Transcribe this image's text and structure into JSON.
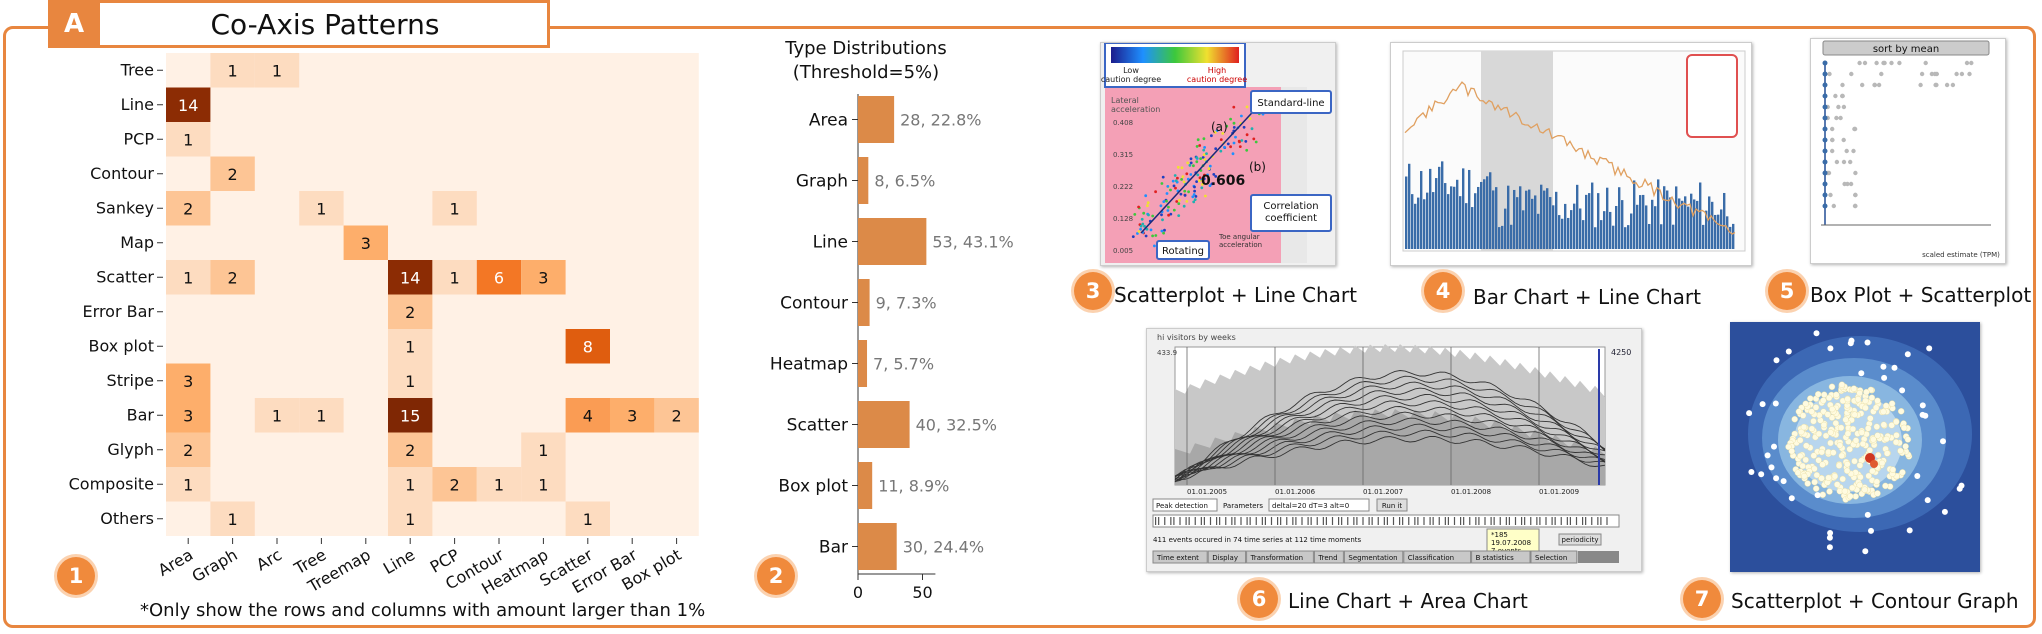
{
  "panel": {
    "letter": "A",
    "title": "Co-Axis Patterns"
  },
  "badges": [
    "1",
    "2",
    "3",
    "4",
    "5",
    "6",
    "7"
  ],
  "note": "*Only show the rows and columns with amount larger than 1%",
  "colors": {
    "accent": "#e8863f",
    "heat_low": "#fff1e5",
    "heat_high": "#7f2704",
    "bar": "#dc8a48"
  },
  "chart_data": [
    {
      "type": "heatmap",
      "rows": [
        "Tree",
        "Line",
        "PCP",
        "Contour",
        "Sankey",
        "Map",
        "Scatter",
        "Error Bar",
        "Box plot",
        "Stripe",
        "Bar",
        "Glyph",
        "Composite",
        "Others"
      ],
      "columns": [
        "Area",
        "Graph",
        "Arc",
        "Tree",
        "Treemap",
        "Line",
        "PCP",
        "Contour",
        "Heatmap",
        "Scatter",
        "Error Bar",
        "Box plot"
      ],
      "cells": [
        {
          "row": "Tree",
          "col": "Graph",
          "value": 1
        },
        {
          "row": "Tree",
          "col": "Arc",
          "value": 1
        },
        {
          "row": "Line",
          "col": "Area",
          "value": 14
        },
        {
          "row": "PCP",
          "col": "Area",
          "value": 1
        },
        {
          "row": "Contour",
          "col": "Graph",
          "value": 2
        },
        {
          "row": "Sankey",
          "col": "Area",
          "value": 2
        },
        {
          "row": "Sankey",
          "col": "Tree",
          "value": 1
        },
        {
          "row": "Sankey",
          "col": "PCP",
          "value": 1
        },
        {
          "row": "Map",
          "col": "Treemap",
          "value": 3
        },
        {
          "row": "Scatter",
          "col": "Area",
          "value": 1
        },
        {
          "row": "Scatter",
          "col": "Graph",
          "value": 2
        },
        {
          "row": "Scatter",
          "col": "Line",
          "value": 14
        },
        {
          "row": "Scatter",
          "col": "PCP",
          "value": 1
        },
        {
          "row": "Scatter",
          "col": "Contour",
          "value": 6
        },
        {
          "row": "Scatter",
          "col": "Heatmap",
          "value": 3
        },
        {
          "row": "Error Bar",
          "col": "Line",
          "value": 2
        },
        {
          "row": "Box plot",
          "col": "Line",
          "value": 1
        },
        {
          "row": "Box plot",
          "col": "Scatter",
          "value": 8
        },
        {
          "row": "Stripe",
          "col": "Area",
          "value": 3
        },
        {
          "row": "Stripe",
          "col": "Line",
          "value": 1
        },
        {
          "row": "Bar",
          "col": "Area",
          "value": 3
        },
        {
          "row": "Bar",
          "col": "Arc",
          "value": 1
        },
        {
          "row": "Bar",
          "col": "Tree",
          "value": 1
        },
        {
          "row": "Bar",
          "col": "Line",
          "value": 15
        },
        {
          "row": "Bar",
          "col": "Scatter",
          "value": 4
        },
        {
          "row": "Bar",
          "col": "Error Bar",
          "value": 3
        },
        {
          "row": "Bar",
          "col": "Box plot",
          "value": 2
        },
        {
          "row": "Glyph",
          "col": "Area",
          "value": 2
        },
        {
          "row": "Glyph",
          "col": "Line",
          "value": 2
        },
        {
          "row": "Glyph",
          "col": "Heatmap",
          "value": 1
        },
        {
          "row": "Composite",
          "col": "Area",
          "value": 1
        },
        {
          "row": "Composite",
          "col": "Line",
          "value": 1
        },
        {
          "row": "Composite",
          "col": "PCP",
          "value": 2
        },
        {
          "row": "Composite",
          "col": "Contour",
          "value": 1
        },
        {
          "row": "Composite",
          "col": "Heatmap",
          "value": 1
        },
        {
          "row": "Others",
          "col": "Graph",
          "value": 1
        },
        {
          "row": "Others",
          "col": "Line",
          "value": 1
        },
        {
          "row": "Others",
          "col": "Scatter",
          "value": 1
        }
      ],
      "value_range": [
        0,
        15
      ]
    },
    {
      "type": "bar",
      "orientation": "horizontal",
      "title": "Type Distributions\n(Threshold=5%)",
      "categories": [
        "Area",
        "Graph",
        "Line",
        "Contour",
        "Heatmap",
        "Scatter",
        "Box plot",
        "Bar"
      ],
      "values": [
        28,
        8,
        53,
        9,
        7,
        40,
        11,
        30
      ],
      "labels": [
        "28, 22.8%",
        "8, 6.5%",
        "53, 43.1%",
        "9, 7.3%",
        "7, 5.7%",
        "40, 32.5%",
        "11, 8.9%",
        "30, 24.4%"
      ],
      "xlim": [
        0,
        60
      ],
      "xticks": [
        0,
        50
      ]
    }
  ],
  "examples": {
    "ex3": {
      "caption": "Scatterplot + Line Chart",
      "legend_low": "Low\ncaution degree",
      "legend_high": "High\ncaution degree",
      "y_label": "Lateral\nacceleration",
      "x_label": "Toe angular\nacceleration",
      "callout_standard": "Standard-line",
      "callout_corr": "Correlation\ncoefficient",
      "callout_rotating": "Rotating",
      "mark_a": "(a)",
      "mark_b": "(b)",
      "corr_value": "0.606",
      "y_ticks": [
        "0.408",
        "0.315",
        "0.222",
        "0.128",
        "0.005"
      ]
    },
    "ex4": {
      "caption": "Bar Chart + Line Chart"
    },
    "ex5": {
      "caption": "Box Plot + Scatterplot",
      "sort_button": "sort by mean",
      "x_label": "scaled estimate (TPM)"
    },
    "ex6": {
      "caption": "Line Chart + Area  Chart",
      "header": "hi visitors by weeks",
      "y_top": "433.9",
      "y_right": "4250",
      "x_ticks": [
        "01.01.2005",
        "01.01.2006",
        "01.01.2007",
        "01.01.2008",
        "01.01.2009"
      ],
      "toolbar_select": "Peak detection",
      "toolbar_params": "Parameters",
      "toolbar_input": "deltal=20 dT=3 alt=0",
      "toolbar_run": "Run it",
      "events_text": "411 events occured in 74 time series at 112 time moments",
      "periodicity": "periodicity",
      "tooltip": "*185\n19.07.2008\n7 events",
      "tabs": [
        "Time extent",
        "Display",
        "Transformation",
        "Trend",
        "Segmentation",
        "Classification",
        "B statistics",
        "Selection"
      ]
    },
    "ex7": {
      "caption": "Scatterplot + Contour Graph"
    }
  }
}
